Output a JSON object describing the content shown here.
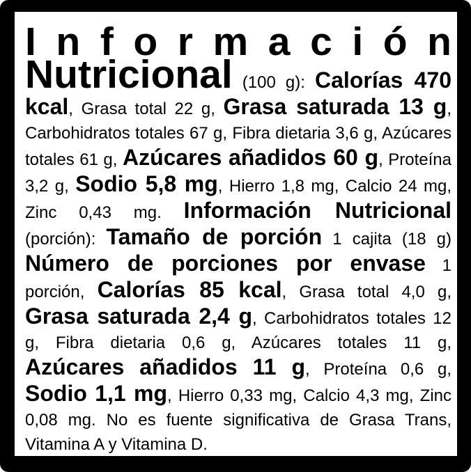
{
  "label": {
    "colors": {
      "frame": "#000000",
      "panel": "#ffffff",
      "text": "#000000"
    },
    "segments": [
      {
        "name": "title-informacion",
        "style": "title-spaced",
        "text": "I n f o r m a c i ó n "
      },
      {
        "name": "title-nutricional",
        "style": "title",
        "text": "Nutricional"
      },
      {
        "name": "basis-100g",
        "style": "regular",
        "text": " (100 g): "
      },
      {
        "name": "calorias-100g",
        "style": "bold",
        "text": "Calorías 470 kcal"
      },
      {
        "name": "grasa-total-100g",
        "style": "regular",
        "text": ", Grasa total 22 g, "
      },
      {
        "name": "grasa-saturada-100g",
        "style": "bold",
        "text": "Grasa saturada 13 g"
      },
      {
        "name": "carbohidratos-fibra-azucares-100g",
        "style": "regular",
        "text": ", Carbohidratos totales 67 g, Fibra dietaria 3,6 g, Azúcares totales 61 g, "
      },
      {
        "name": "azucares-anadidos-100g",
        "style": "bold",
        "text": "Azúcares añadidos 60 g"
      },
      {
        "name": "proteina-100g",
        "style": "regular",
        "text": ", Proteína 3,2 g, "
      },
      {
        "name": "sodio-100g",
        "style": "bold",
        "text": "Sodio 5,8 mg"
      },
      {
        "name": "minerales-100g",
        "style": "regular",
        "text": ", Hierro 1,8 mg, Calcio 24 mg, Zinc 0,43 mg. "
      },
      {
        "name": "header-porcion",
        "style": "bold",
        "text": "Información Nutricional"
      },
      {
        "name": "basis-porcion",
        "style": "regular",
        "text": " (porción): "
      },
      {
        "name": "tamano-porcion-label",
        "style": "bold",
        "text": "Tamaño de porción"
      },
      {
        "name": "tamano-porcion-value",
        "style": "regular",
        "text": " 1 cajita (18 g) "
      },
      {
        "name": "num-porciones-label",
        "style": "bold",
        "text": "Número de porciones por envase"
      },
      {
        "name": "num-porciones-value",
        "style": "regular",
        "text": " 1 porción, "
      },
      {
        "name": "calorias-porcion",
        "style": "bold",
        "text": "Calorías 85 kcal"
      },
      {
        "name": "grasa-total-porcion",
        "style": "regular",
        "text": ", Grasa total 4,0 g, "
      },
      {
        "name": "grasa-saturada-porcion",
        "style": "bold",
        "text": "Grasa saturada 2,4 g"
      },
      {
        "name": "carbohidratos-fibra-azucares-porcion",
        "style": "regular",
        "text": ", Carbohidratos totales 12 g, Fibra dietaria 0,6 g, Azúcares totales 11 g, "
      },
      {
        "name": "azucares-anadidos-porcion",
        "style": "bold",
        "text": "Azúcares añadidos 11 g"
      },
      {
        "name": "proteina-porcion",
        "style": "regular",
        "text": ", Proteína 0,6 g, "
      },
      {
        "name": "sodio-porcion",
        "style": "bold",
        "text": "Sodio 1,1 mg"
      },
      {
        "name": "minerales-y-nota-porcion",
        "style": "regular",
        "text": ", Hierro 0,33 mg, Calcio 4,3 mg, Zinc 0,08 mg. No es fuente significativa de Grasa Trans, Vitamina A y Vitamina D."
      }
    ]
  }
}
